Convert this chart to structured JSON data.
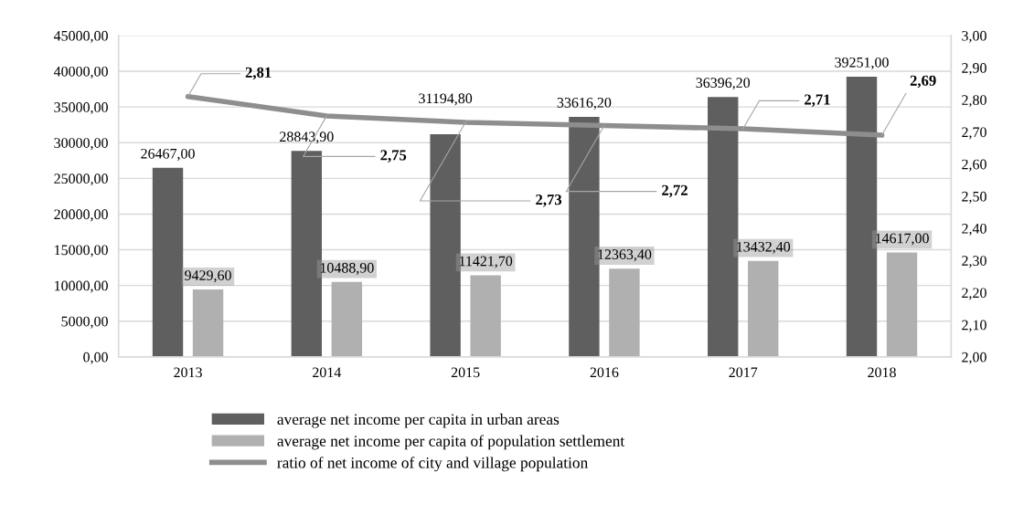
{
  "chart_data": {
    "type": "bar",
    "categories": [
      "2013",
      "2014",
      "2015",
      "2016",
      "2017",
      "2018"
    ],
    "series": [
      {
        "name": "average net income per capita in urban areas",
        "color": "#5f5f5f",
        "values": [
          26467.0,
          28843.9,
          31194.8,
          33616.2,
          36396.2,
          39251.0
        ],
        "value_labels": [
          "26467,00",
          "28843,90",
          "31194,80",
          "33616,20",
          "36396,20",
          "39251,00"
        ]
      },
      {
        "name": "average net income per capita of population settlement",
        "color": "#b0b0b0",
        "values": [
          9429.6,
          10488.9,
          11421.7,
          12363.4,
          13432.4,
          14617.0
        ],
        "value_labels": [
          "9429,60",
          "10488,90",
          "11421,70",
          "12363,40",
          "13432,40",
          "14617,00"
        ]
      },
      {
        "name": "ratio of net income of city and village population",
        "type": "line",
        "axis": "y2",
        "color": "#8e8e8e",
        "values": [
          2.81,
          2.75,
          2.73,
          2.72,
          2.71,
          2.69
        ],
        "value_labels": [
          "2,81",
          "2,75",
          "2,73",
          "2,72",
          "2,71",
          "2,69"
        ]
      }
    ],
    "ylim": [
      0,
      45000
    ],
    "yticks": [
      {
        "value": 0,
        "label": "0,00"
      },
      {
        "value": 5000,
        "label": "5000,00"
      },
      {
        "value": 10000,
        "label": "10000,00"
      },
      {
        "value": 15000,
        "label": "15000,00"
      },
      {
        "value": 20000,
        "label": "20000,00"
      },
      {
        "value": 25000,
        "label": "25000,00"
      },
      {
        "value": 30000,
        "label": "30000,00"
      },
      {
        "value": 35000,
        "label": "35000,00"
      },
      {
        "value": 40000,
        "label": "40000,00"
      },
      {
        "value": 45000,
        "label": "45000,00"
      }
    ],
    "y2lim": [
      2,
      3
    ],
    "y2ticks": [
      {
        "value": 2.0,
        "label": "2,00"
      },
      {
        "value": 2.1,
        "label": "2,10"
      },
      {
        "value": 2.2,
        "label": "2,20"
      },
      {
        "value": 2.3,
        "label": "2,30"
      },
      {
        "value": 2.4,
        "label": "2,40"
      },
      {
        "value": 2.5,
        "label": "2,50"
      },
      {
        "value": 2.6,
        "label": "2,60"
      },
      {
        "value": 2.7,
        "label": "2,70"
      },
      {
        "value": 2.8,
        "label": "2,80"
      },
      {
        "value": 2.9,
        "label": "2,90"
      },
      {
        "value": 3.0,
        "label": "3,00"
      }
    ],
    "grid": "y",
    "legend": "bottom",
    "line_style": "solid"
  }
}
